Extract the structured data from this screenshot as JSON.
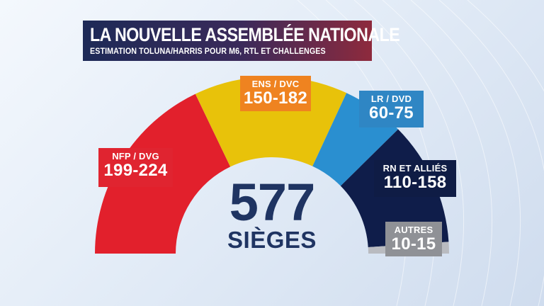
{
  "header": {
    "title": "LA NOUVELLE ASSEMBLÉE NATIONALE",
    "subtitle": "ESTIMATION TOLUNA/HARRIS POUR M6, RTL ET CHALLENGES"
  },
  "total": {
    "value": "577",
    "unit": "SIÈGES"
  },
  "chart_data": {
    "type": "pie",
    "style": "semicircle-parliament",
    "total_seats": 577,
    "segments": [
      {
        "name": "NFP / DVG",
        "range": "199-224",
        "value": 211.5,
        "color": "#e2202c"
      },
      {
        "name": "ENS / DVC",
        "range": "150-182",
        "value": 166,
        "color": "#e8c20a"
      },
      {
        "name": "LR / DVD",
        "range": "60-75",
        "value": 67.5,
        "color": "#2a8fd0"
      },
      {
        "name": "RN ET ALLIÉS",
        "range": "110-158",
        "value": 134,
        "color": "#0f1d4a"
      },
      {
        "name": "AUTRES",
        "range": "10-15",
        "value": 12.5,
        "color": "#b9bbc0"
      }
    ],
    "label_colors": [
      "#e02430",
      "#ef8320",
      "#2f86c4",
      "#0f1c45",
      "#8f9196"
    ]
  }
}
